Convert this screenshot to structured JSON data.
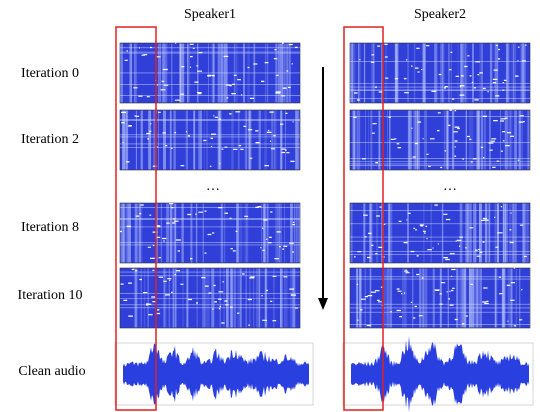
{
  "columns": [
    "Speaker1",
    "Speaker2"
  ],
  "rows": [
    "Iteration 0",
    "Iteration 2",
    "Iteration 8",
    "Iteration 10",
    "Clean audio"
  ],
  "ellipsis": "…"
}
